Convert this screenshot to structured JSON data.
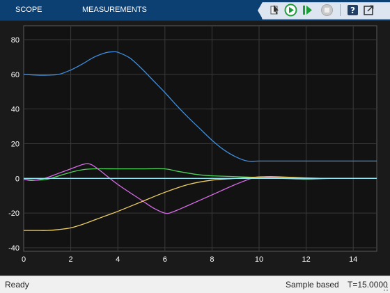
{
  "toolstrip": {
    "tabs": [
      "SCOPE",
      "MEASUREMENTS"
    ],
    "quick_access": [
      "highlight-simulink-block-icon",
      "run-icon",
      "step-forward-icon",
      "stop-icon",
      "help-icon",
      "undock-icon"
    ]
  },
  "status": {
    "state": "Ready",
    "mode": "Sample based",
    "time": "T=15.0000"
  },
  "colors": {
    "toolstrip_bg": "#0c3f72",
    "plot_bg": "#121212",
    "grid": "#3a3a3a",
    "series": [
      "#3d8fe0",
      "#4fd15a",
      "#d86ce8",
      "#f0d066",
      "#8fe6f2"
    ]
  },
  "chart_data": {
    "type": "line",
    "title": "",
    "xlabel": "",
    "ylabel": "",
    "xlim": [
      0,
      15
    ],
    "ylim": [
      -42,
      88
    ],
    "xticks": [
      0,
      2,
      4,
      6,
      8,
      10,
      12,
      14
    ],
    "yticks": [
      -40,
      -20,
      0,
      20,
      40,
      60,
      80
    ],
    "grid": true,
    "series": [
      {
        "color": "#3d8fe0",
        "x": [
          0,
          0.5,
          1,
          1.5,
          2,
          2.5,
          3,
          3.5,
          3.8,
          4,
          4.5,
          5,
          5.5,
          6,
          6.5,
          7,
          7.5,
          8,
          8.5,
          9,
          9.5,
          10,
          11,
          12,
          13,
          14,
          15
        ],
        "y": [
          60,
          59.6,
          59.5,
          60,
          62.5,
          66,
          70,
          72.5,
          73,
          72.7,
          69.5,
          63.5,
          56.5,
          49.5,
          42,
          35,
          28.5,
          22,
          16.5,
          12.5,
          10,
          10,
          10,
          10,
          10,
          10,
          10
        ]
      },
      {
        "color": "#4fd15a",
        "x": [
          0,
          0.5,
          1,
          1.5,
          2,
          2.5,
          3,
          4,
          5,
          6,
          6.5,
          7,
          7.5,
          8,
          9,
          10,
          11,
          12,
          13,
          14,
          15
        ],
        "y": [
          -0.5,
          -1,
          -0.5,
          1.5,
          3.5,
          5,
          5.5,
          5.5,
          5.5,
          5.5,
          4.2,
          3,
          2,
          1.5,
          1,
          0.5,
          0,
          -0.5,
          0,
          0,
          0
        ]
      },
      {
        "color": "#d86ce8",
        "x": [
          0,
          0.3,
          0.6,
          1,
          1.5,
          2,
          2.5,
          2.7,
          2.9,
          3.2,
          4,
          5,
          5.5,
          6,
          6.3,
          7,
          8,
          9,
          9.8,
          10.3,
          11,
          12,
          13,
          14,
          15
        ],
        "y": [
          -0.5,
          -1.2,
          -0.8,
          0.5,
          3,
          5.5,
          8,
          8.5,
          7.8,
          5,
          -3.5,
          -12.5,
          -17,
          -20,
          -19.5,
          -15.5,
          -9.5,
          -3.5,
          0.5,
          0.8,
          0.3,
          0,
          0,
          0,
          0
        ]
      },
      {
        "color": "#f0d066",
        "x": [
          0,
          0.5,
          1,
          1.5,
          2,
          2.5,
          3,
          3.5,
          4,
          5,
          6,
          7,
          8,
          9,
          10,
          10.5,
          11,
          12,
          13,
          14,
          15
        ],
        "y": [
          -30,
          -30,
          -30,
          -29.5,
          -28.5,
          -26.5,
          -24,
          -21.5,
          -19,
          -13.5,
          -8,
          -3.5,
          -1,
          0,
          0.8,
          1,
          0.8,
          0.3,
          0,
          0,
          0
        ]
      },
      {
        "color": "#8fe6f2",
        "x": [
          0,
          15
        ],
        "y": [
          0,
          0
        ]
      }
    ]
  }
}
